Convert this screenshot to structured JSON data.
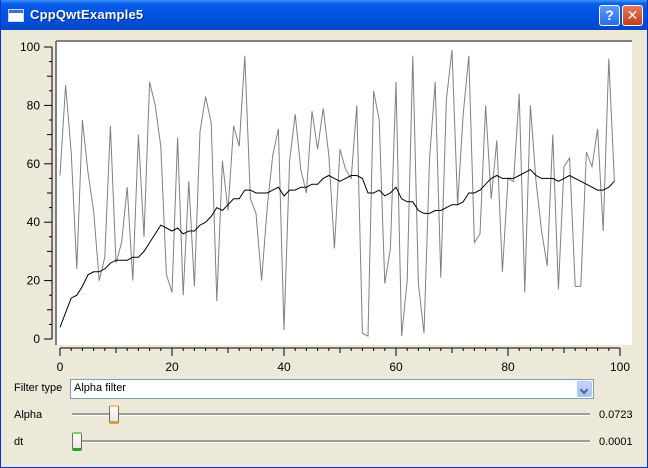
{
  "window": {
    "title": "CppQwtExample5",
    "help_label": "?",
    "close_label": "✕",
    "icons": [
      "app-window-icon",
      "help-icon",
      "close-icon"
    ]
  },
  "controls": {
    "filter_type_label": "Filter type",
    "filter_type_value": "Alpha filter",
    "alpha_label": "Alpha",
    "alpha_value": "0.0723",
    "alpha_fraction": 0.0723,
    "dt_label": "dt",
    "dt_value": "0.0001",
    "dt_fraction": 0.0
  },
  "chart_data": {
    "type": "line",
    "title": "",
    "xlabel": "",
    "ylabel": "",
    "xlim": [
      0,
      100
    ],
    "ylim": [
      0,
      100
    ],
    "x_ticks": [
      0,
      20,
      40,
      60,
      80,
      100
    ],
    "y_ticks": [
      0,
      20,
      40,
      60,
      80,
      100
    ],
    "grid": false,
    "series": [
      {
        "color": "#808080",
        "values": [
          56,
          87,
          64,
          24,
          75,
          57,
          44,
          20,
          28,
          73,
          26,
          33,
          52,
          20,
          70,
          35,
          88,
          80,
          66,
          22,
          16,
          69,
          15,
          54,
          18,
          71,
          83,
          74,
          13,
          61,
          44,
          73,
          66,
          97,
          48,
          43,
          20,
          45,
          63,
          72,
          3,
          61,
          77,
          58,
          50,
          78,
          65,
          79,
          63,
          31,
          65,
          58,
          55,
          80,
          2,
          1,
          85,
          75,
          19,
          31,
          88,
          1,
          20,
          97,
          19,
          2,
          62,
          88,
          21,
          82,
          99,
          46,
          77,
          97,
          33,
          36,
          80,
          48,
          68,
          23,
          55,
          54,
          84,
          16,
          80,
          54,
          37,
          25,
          70,
          17,
          59,
          62,
          18,
          18,
          64,
          59,
          72,
          37,
          96,
          54
        ],
        "x": [
          0,
          1,
          2,
          3,
          4,
          5,
          6,
          7,
          8,
          9,
          10,
          11,
          12,
          13,
          14,
          15,
          16,
          17,
          18,
          19,
          20,
          21,
          22,
          23,
          24,
          25,
          26,
          27,
          28,
          29,
          30,
          31,
          32,
          33,
          34,
          35,
          36,
          37,
          38,
          39,
          40,
          41,
          42,
          43,
          44,
          45,
          46,
          47,
          48,
          49,
          50,
          51,
          52,
          53,
          54,
          55,
          56,
          57,
          58,
          59,
          60,
          61,
          62,
          63,
          64,
          65,
          66,
          67,
          68,
          69,
          70,
          71,
          72,
          73,
          74,
          75,
          76,
          77,
          78,
          79,
          80,
          81,
          82,
          83,
          84,
          85,
          86,
          87,
          88,
          89,
          90,
          91,
          92,
          93,
          94,
          95,
          96,
          97,
          98,
          99
        ]
      },
      {
        "color": "#000000",
        "values": [
          4,
          9,
          14,
          15,
          18,
          22,
          23,
          23,
          24,
          26,
          27,
          27,
          27,
          28,
          28,
          30,
          33,
          36,
          39,
          38,
          37,
          38,
          36,
          37,
          37,
          39,
          40,
          42,
          45,
          44,
          46,
          48,
          48,
          51,
          51,
          50,
          50,
          50,
          51,
          52,
          49,
          51,
          51,
          52,
          52,
          53,
          53,
          55,
          56,
          55,
          54,
          55,
          56,
          56,
          55,
          50,
          50,
          51,
          49,
          50,
          52,
          48,
          47,
          47,
          44,
          43,
          43,
          44,
          44,
          45,
          46,
          46,
          47,
          50,
          50,
          51,
          53,
          55,
          56,
          55,
          55,
          55,
          56,
          57,
          58,
          56,
          55,
          55,
          55,
          54,
          55,
          56,
          55,
          54,
          53,
          52,
          51,
          51,
          52,
          54
        ],
        "x": [
          0,
          1,
          2,
          3,
          4,
          5,
          6,
          7,
          8,
          9,
          10,
          11,
          12,
          13,
          14,
          15,
          16,
          17,
          18,
          19,
          20,
          21,
          22,
          23,
          24,
          25,
          26,
          27,
          28,
          29,
          30,
          31,
          32,
          33,
          34,
          35,
          36,
          37,
          38,
          39,
          40,
          41,
          42,
          43,
          44,
          45,
          46,
          47,
          48,
          49,
          50,
          51,
          52,
          53,
          54,
          55,
          56,
          57,
          58,
          59,
          60,
          61,
          62,
          63,
          64,
          65,
          66,
          67,
          68,
          69,
          70,
          71,
          72,
          73,
          74,
          75,
          76,
          77,
          78,
          79,
          80,
          81,
          82,
          83,
          84,
          85,
          86,
          87,
          88,
          89,
          90,
          91,
          92,
          93,
          94,
          95,
          96,
          97,
          98,
          99
        ]
      }
    ]
  }
}
